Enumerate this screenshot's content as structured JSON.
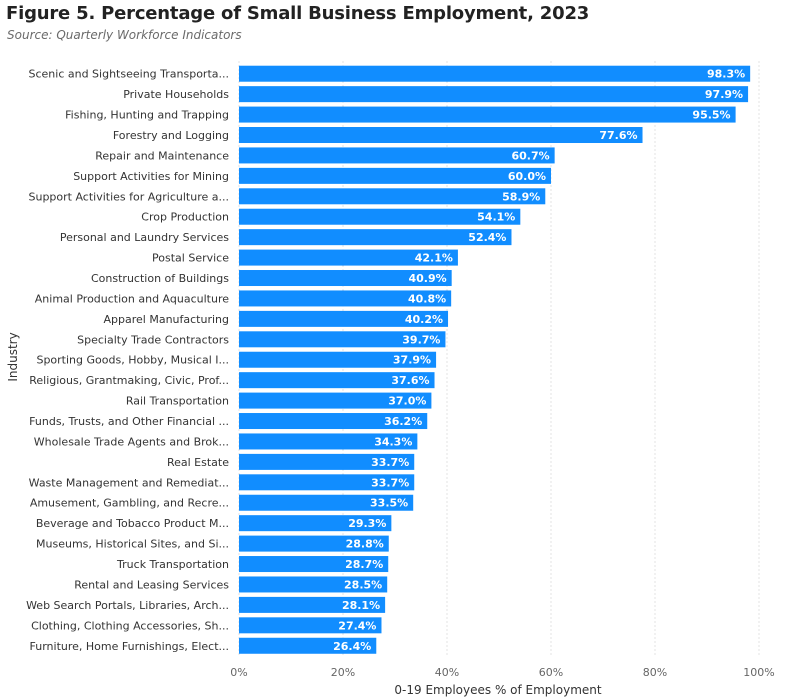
{
  "chart_data": {
    "type": "bar",
    "orientation": "horizontal",
    "title": "Figure 5. Percentage of Small Business Employment, 2023",
    "subtitle": "Source: Quarterly Workforce Indicators",
    "xlabel": "0-19 Employees % of Employment",
    "ylabel": "Industry",
    "xlim": [
      0,
      100
    ],
    "x_ticks": [
      "0%",
      "20%",
      "40%",
      "60%",
      "80%",
      "100%"
    ],
    "x_tick_values": [
      0,
      20,
      40,
      60,
      80,
      100
    ],
    "grid": "vertical dotted",
    "bar_color": "#118DFF",
    "categories": [
      "Scenic and Sightseeing Transporta...",
      "Private Households",
      "Fishing, Hunting and Trapping",
      "Forestry and Logging",
      "Repair and Maintenance",
      "Support Activities for Mining",
      "Support Activities for Agriculture a...",
      "Crop Production",
      "Personal and Laundry Services",
      "Postal Service",
      "Construction of Buildings",
      "Animal Production and Aquaculture",
      "Apparel Manufacturing",
      "Specialty Trade Contractors",
      "Sporting Goods, Hobby, Musical I...",
      "Religious, Grantmaking, Civic, Prof...",
      "Rail Transportation",
      "Funds, Trusts, and Other Financial ...",
      "Wholesale Trade Agents and Brok...",
      "Real Estate",
      "Waste Management and Remediat...",
      "Amusement, Gambling, and Recre...",
      "Beverage and Tobacco Product M...",
      "Museums, Historical Sites, and Si...",
      "Truck Transportation",
      "Rental and Leasing Services",
      "Web Search Portals, Libraries, Arch...",
      "Clothing, Clothing Accessories, Sh...",
      "Furniture, Home Furnishings, Elect..."
    ],
    "values": [
      98.3,
      97.9,
      95.5,
      77.6,
      60.7,
      60.0,
      58.9,
      54.1,
      52.4,
      42.1,
      40.9,
      40.8,
      40.2,
      39.7,
      37.9,
      37.6,
      37.0,
      36.2,
      34.3,
      33.7,
      33.7,
      33.5,
      29.3,
      28.8,
      28.7,
      28.5,
      28.1,
      27.4,
      26.4
    ],
    "value_labels": [
      "98.3%",
      "97.9%",
      "95.5%",
      "77.6%",
      "60.7%",
      "60.0%",
      "58.9%",
      "54.1%",
      "52.4%",
      "42.1%",
      "40.9%",
      "40.8%",
      "40.2%",
      "39.7%",
      "37.9%",
      "37.6%",
      "37.0%",
      "36.2%",
      "34.3%",
      "33.7%",
      "33.7%",
      "33.5%",
      "29.3%",
      "28.8%",
      "28.7%",
      "28.5%",
      "28.1%",
      "27.4%",
      "26.4%"
    ]
  }
}
